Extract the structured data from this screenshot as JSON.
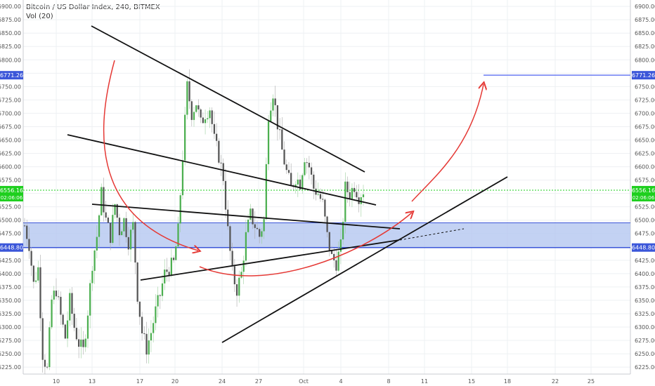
{
  "header": {
    "title": "Bitcoin / US Dollar Index, 240, BITMEX",
    "indicator": "Vol (20)"
  },
  "colors": {
    "up": "#4caf50",
    "down": "#555555",
    "zone_fill": "#b4c7f0",
    "zone_line": "#3b56d9",
    "target_line": "#6b7cf2",
    "current_line": "#1ecf1e",
    "arrow": "#e53935",
    "trendline": "#111111",
    "grid": "#eef0f3"
  },
  "chart_data": {
    "type": "candlestick",
    "ylim": [
      6212,
      6912
    ],
    "ytick_labels": [
      "6225.00",
      "6250.00",
      "6275.00",
      "6300.00",
      "6325.00",
      "6350.00",
      "6375.00",
      "6400.00",
      "6425.00",
      "6450.00",
      "6475.00",
      "6500.00",
      "6525.00",
      "6550.00",
      "6575.00",
      "6600.00",
      "6625.00",
      "6650.00",
      "6675.00",
      "6700.00",
      "6725.00",
      "6750.00",
      "6775.00",
      "6800.00",
      "6825.00",
      "6850.00",
      "6875.00",
      "6900.00"
    ],
    "xtick_labels": [
      "10",
      "13",
      "17",
      "20",
      "24",
      "27",
      "Oct",
      "4",
      "8",
      "11",
      "15",
      "18",
      "22",
      "25"
    ],
    "price_labels": [
      {
        "text": "6771.26",
        "value": 6771.26,
        "color": "#3b56d9"
      },
      {
        "text": "6556.16",
        "value": 6556.16,
        "color": "#1ecf1e",
        "sub": "02:06:06"
      },
      {
        "text": "6448.80",
        "value": 6448.8,
        "color": "#3b56d9"
      }
    ],
    "zone": {
      "low": 6448.8,
      "high": 6495
    },
    "target_price": 6771.26,
    "current_price": 6556.16,
    "close_path": [
      [
        0,
        6490
      ],
      [
        2,
        6455
      ],
      [
        4,
        6380
      ],
      [
        6,
        6410
      ],
      [
        8,
        6250
      ],
      [
        10,
        6220
      ],
      [
        12,
        6350
      ],
      [
        14,
        6370
      ],
      [
        16,
        6320
      ],
      [
        18,
        6280
      ],
      [
        20,
        6350
      ],
      [
        22,
        6300
      ],
      [
        24,
        6270
      ],
      [
        26,
        6255
      ],
      [
        28,
        6330
      ],
      [
        30,
        6420
      ],
      [
        32,
        6470
      ],
      [
        34,
        6550
      ],
      [
        36,
        6500
      ],
      [
        38,
        6470
      ],
      [
        40,
        6530
      ],
      [
        42,
        6480
      ],
      [
        44,
        6500
      ],
      [
        46,
        6460
      ],
      [
        48,
        6490
      ],
      [
        50,
        6360
      ],
      [
        52,
        6290
      ],
      [
        54,
        6260
      ],
      [
        56,
        6290
      ],
      [
        58,
        6330
      ],
      [
        60,
        6360
      ],
      [
        62,
        6400
      ],
      [
        64,
        6410
      ],
      [
        66,
        6420
      ],
      [
        68,
        6480
      ],
      [
        70,
        6620
      ],
      [
        72,
        6750
      ],
      [
        74,
        6700
      ],
      [
        76,
        6720
      ],
      [
        78,
        6680
      ],
      [
        80,
        6700
      ],
      [
        82,
        6710
      ],
      [
        84,
        6650
      ],
      [
        86,
        6620
      ],
      [
        88,
        6580
      ],
      [
        90,
        6480
      ],
      [
        92,
        6400
      ],
      [
        94,
        6370
      ],
      [
        96,
        6400
      ],
      [
        98,
        6470
      ],
      [
        100,
        6510
      ],
      [
        102,
        6490
      ],
      [
        104,
        6470
      ],
      [
        106,
        6500
      ],
      [
        108,
        6700
      ],
      [
        110,
        6740
      ],
      [
        112,
        6680
      ],
      [
        114,
        6630
      ],
      [
        116,
        6590
      ],
      [
        118,
        6560
      ],
      [
        120,
        6580
      ],
      [
        122,
        6570
      ],
      [
        124,
        6620
      ],
      [
        126,
        6600
      ],
      [
        128,
        6560
      ],
      [
        130,
        6550
      ],
      [
        132,
        6530
      ],
      [
        134,
        6470
      ],
      [
        136,
        6430
      ],
      [
        138,
        6420
      ],
      [
        140,
        6450
      ],
      [
        142,
        6560
      ],
      [
        144,
        6550
      ],
      [
        146,
        6565
      ],
      [
        148,
        6545
      ],
      [
        150,
        6556
      ]
    ]
  }
}
